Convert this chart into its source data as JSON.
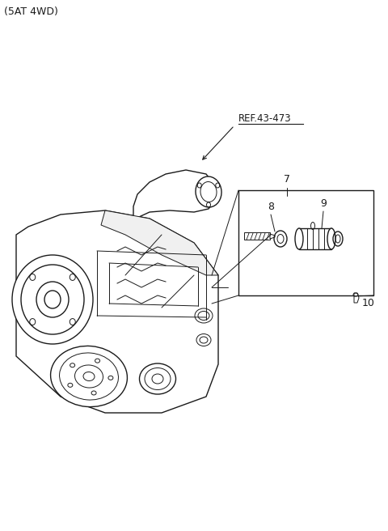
{
  "title": "(5AT 4WD)",
  "ref_label": "REF.43-473",
  "part_numbers": [
    "7",
    "8",
    "9",
    "10"
  ],
  "background_color": "#ffffff",
  "line_color": "#1a1a1a",
  "title_fontsize": 9,
  "label_fontsize": 9,
  "fig_width": 4.8,
  "fig_height": 6.56,
  "dpi": 100,
  "housing_color": "#ffffff",
  "housing_lw": 1.0,
  "thin_lw": 0.7
}
